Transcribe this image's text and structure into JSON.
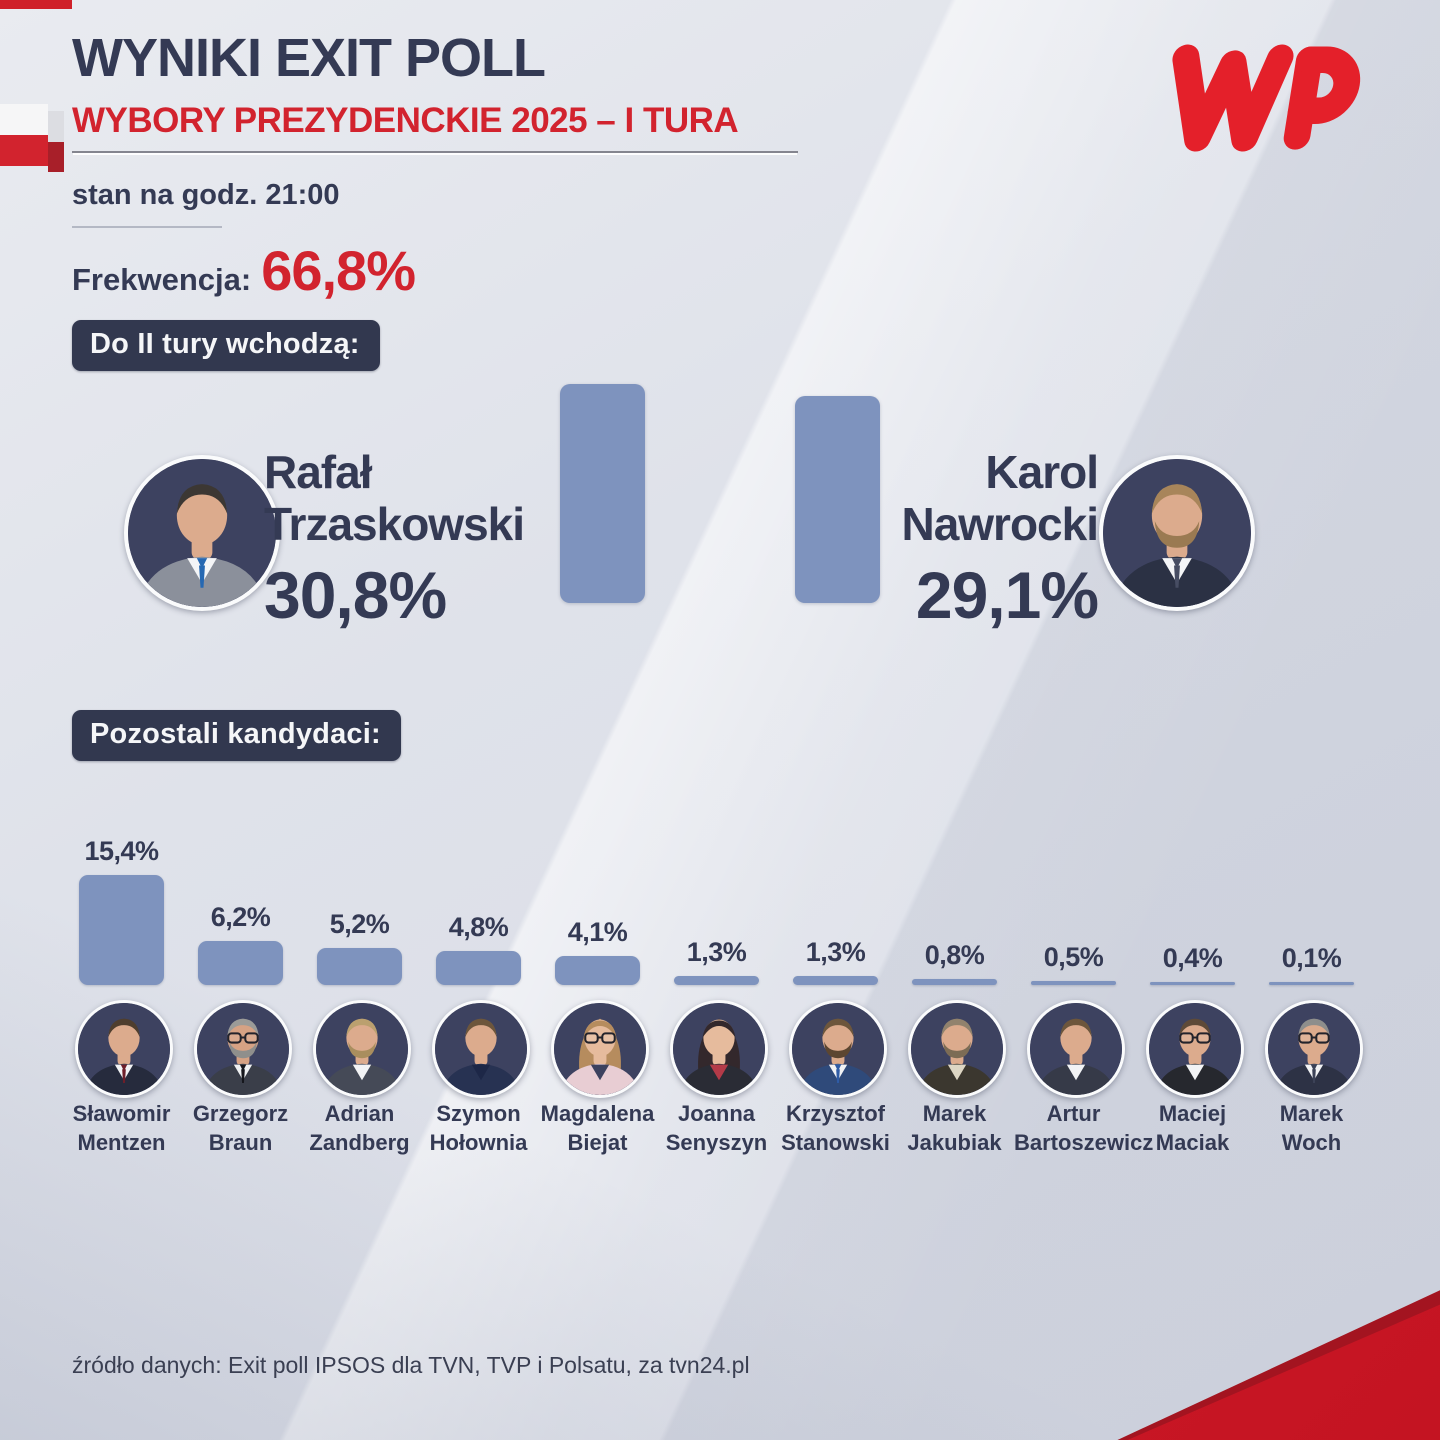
{
  "header": {
    "title": "WYNIKI EXIT POLL",
    "subtitle": "WYBORY PREZYDENCKIE 2025 – I TURA",
    "status_time": "stan na godz. 21:00",
    "turnout_label": "Frekwencja:",
    "turnout_value": "66,8%",
    "logo_text": "WP"
  },
  "sections": {
    "finalists_label": "Do II tury wchodzą:",
    "others_label": "Pozostali kandydaci:"
  },
  "colors": {
    "accent_red": "#d2232e",
    "navy_text": "#343a54",
    "bar_blue": "#7e93be",
    "badge_bg": "#32384f",
    "logo_red": "#e4202a"
  },
  "chart_data": {
    "type": "bar",
    "title": "WYNIKI EXIT POLL — WYBORY PREZYDENCKIE 2025 – I TURA",
    "subtitle": "stan na godz. 21:00",
    "unit": "%",
    "ylim": [
      0,
      31
    ],
    "turnout_percent": 66.8,
    "finalists": [
      {
        "first": "Rafał",
        "last": "Trzaskowski",
        "value": 30.8,
        "value_label": "30,8%",
        "avatar": {
          "hair": "#3c3733",
          "skin": "#dcab8d",
          "suit": "#8b909b",
          "shirt": "#f4f5f7",
          "tie": "#2668b2"
        }
      },
      {
        "first": "Karol",
        "last": "Nawrocki",
        "value": 29.1,
        "value_label": "29,1%",
        "avatar": {
          "hair": "#a8855a",
          "skin": "#dcab8d",
          "suit": "#2b3144",
          "shirt": "#f4f5f7",
          "tie": "#474d63",
          "beard": "#9a7a52"
        }
      }
    ],
    "others": [
      {
        "first": "Sławomir",
        "last": "Mentzen",
        "value": 15.4,
        "value_label": "15,4%",
        "avatar": {
          "hair": "#4f3e2e",
          "skin": "#dcab8d",
          "suit": "#262b3d",
          "shirt": "#f2f3f5",
          "tie": "#6e1f2a"
        }
      },
      {
        "first": "Grzegorz",
        "last": "Braun",
        "value": 6.2,
        "value_label": "6,2%",
        "avatar": {
          "hair": "#9b9b98",
          "skin": "#d6a284",
          "suit": "#3a3e49",
          "shirt": "#eef0f2",
          "tie": "#15161c",
          "glasses": true,
          "beard": "#8f8f8c"
        }
      },
      {
        "first": "Adrian",
        "last": "Zandberg",
        "value": 5.2,
        "value_label": "5,2%",
        "avatar": {
          "hair": "#bba06f",
          "skin": "#dcab8d",
          "suit": "#454a57",
          "shirt": "#f2f3f5",
          "beard": "#a98e5e"
        }
      },
      {
        "first": "Szymon",
        "last": "Hołownia",
        "value": 4.8,
        "value_label": "4,8%",
        "avatar": {
          "hair": "#6d563c",
          "skin": "#dcab8d",
          "suit": "#273252",
          "shirt": "#1d2747"
        }
      },
      {
        "first": "Magdalena",
        "last": "Biejat",
        "value": 4.1,
        "value_label": "4,1%",
        "avatar": {
          "hair": "#b68c5e",
          "skin": "#e6bb9d",
          "suit": "#e8cdd3",
          "shirt": "#3c415e",
          "glasses": true,
          "style": "long"
        }
      },
      {
        "first": "Joanna",
        "last": "Senyszyn",
        "value": 1.3,
        "value_label": "1,3%",
        "avatar": {
          "hair": "#33282c",
          "skin": "#e6bb9d",
          "suit": "#2a2c35",
          "shirt": "#b43a48",
          "style": "long"
        }
      },
      {
        "first": "Krzysztof",
        "last": "Stanowski",
        "value": 1.3,
        "value_label": "1,3%",
        "avatar": {
          "hair": "#6d563c",
          "skin": "#dcab8d",
          "suit": "#2f4a7a",
          "shirt": "#f2f3f5",
          "tie": "#2f5ca6",
          "beard": "#5c4631"
        }
      },
      {
        "first": "Marek",
        "last": "Jakubiak",
        "value": 0.8,
        "value_label": "0,8%",
        "avatar": {
          "hair": "#91826d",
          "skin": "#dcab8d",
          "suit": "#3b372f",
          "shirt": "#ddd6c4",
          "beard": "#7c6c55"
        }
      },
      {
        "first": "Artur",
        "last": "Bartoszewicz",
        "value": 0.5,
        "value_label": "0,5%",
        "avatar": {
          "hair": "#6d563c",
          "skin": "#dcab8d",
          "suit": "#363a48",
          "shirt": "#f2f3f5"
        }
      },
      {
        "first": "Maciej",
        "last": "Maciak",
        "value": 0.4,
        "value_label": "0,4%",
        "avatar": {
          "hair": "#5e4a38",
          "skin": "#dcab8d",
          "suit": "#26282e",
          "shirt": "#f2f3f5",
          "glasses": true
        }
      },
      {
        "first": "Marek",
        "last": "Woch",
        "value": 0.1,
        "value_label": "0,1%",
        "avatar": {
          "hair": "#8e8e8c",
          "skin": "#dcab8d",
          "suit": "#2d3245",
          "shirt": "#f2f3f5",
          "tie": "#3c4257",
          "glasses": true
        }
      }
    ]
  },
  "footer": {
    "source": "źródło danych: Exit poll IPSOS dla TVN, TVP i Polsatu, za tvn24.pl"
  }
}
